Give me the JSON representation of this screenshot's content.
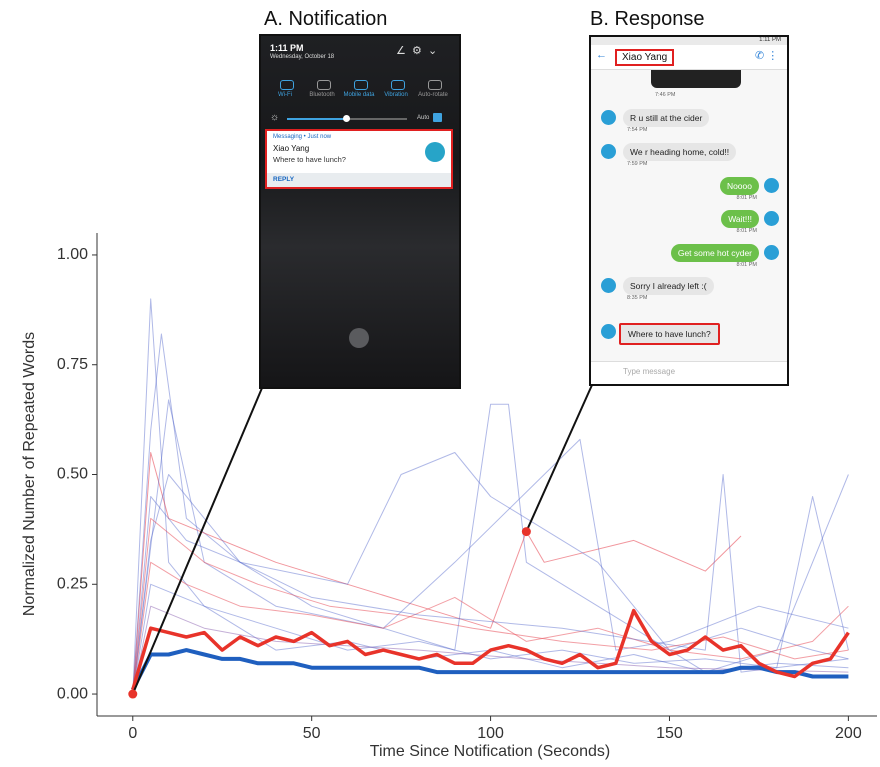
{
  "chart_data": {
    "type": "line",
    "xlabel": "Time Since Notification (Seconds)",
    "ylabel": "Normalized Number of Repeated Words",
    "xlim": [
      -10,
      208
    ],
    "ylim": [
      -0.05,
      1.05
    ],
    "xticks": [
      0,
      50,
      100,
      150,
      200
    ],
    "yticks": [
      {
        "value": 0,
        "label": "0.00"
      },
      {
        "value": 0.25,
        "label": "0.25"
      },
      {
        "value": 0.5,
        "label": "0.50"
      },
      {
        "value": 0.75,
        "label": "0.75"
      },
      {
        "value": 1,
        "label": "1.00"
      }
    ],
    "grid": false,
    "series": [
      {
        "color": "#4f63c9",
        "opacity": 0.45,
        "linewidth": 1,
        "x": [
          0,
          5,
          10,
          20,
          30,
          40,
          60,
          80,
          100,
          120,
          140,
          160,
          180,
          200
        ],
        "values": [
          0,
          0.9,
          0.3,
          0.2,
          0.15,
          0.1,
          0.12,
          0.08,
          0.1,
          0.06,
          0.09,
          0.05,
          0.07,
          0.06
        ]
      },
      {
        "color": "#4f63c9",
        "opacity": 0.45,
        "linewidth": 1,
        "x": [
          0,
          5,
          8,
          15,
          30,
          50,
          70,
          90,
          100,
          105,
          110,
          130,
          150,
          170,
          190,
          200
        ],
        "values": [
          0,
          0.6,
          0.82,
          0.4,
          0.3,
          0.2,
          0.15,
          0.1,
          0.66,
          0.66,
          0.3,
          0.2,
          0.1,
          0.15,
          0.1,
          0.08
        ]
      },
      {
        "color": "#e8505b",
        "opacity": 0.6,
        "linewidth": 1,
        "x": [
          0,
          5,
          10,
          25,
          40,
          60,
          80,
          100,
          110,
          115,
          140,
          160,
          170
        ],
        "values": [
          0,
          0.55,
          0.4,
          0.35,
          0.3,
          0.25,
          0.2,
          0.15,
          0.37,
          0.3,
          0.35,
          0.28,
          0.36
        ]
      },
      {
        "color": "#4f63c9",
        "opacity": 0.45,
        "linewidth": 1,
        "x": [
          0,
          5,
          15,
          30,
          60,
          75,
          90,
          100,
          130,
          140,
          150,
          160,
          180,
          200
        ],
        "values": [
          0,
          0.45,
          0.35,
          0.3,
          0.25,
          0.5,
          0.55,
          0.45,
          0.3,
          0.2,
          0.1,
          0.05,
          0.1,
          0.5
        ]
      },
      {
        "color": "#4f63c9",
        "opacity": 0.45,
        "linewidth": 1,
        "x": [
          0,
          10,
          20,
          40,
          70,
          90,
          125,
          135,
          150,
          175,
          200
        ],
        "values": [
          0,
          0.67,
          0.3,
          0.2,
          0.15,
          0.3,
          0.58,
          0.1,
          0.12,
          0.2,
          0.15
        ]
      },
      {
        "color": "#e8505b",
        "opacity": 0.55,
        "linewidth": 1,
        "x": [
          0,
          5,
          15,
          30,
          50,
          70,
          90,
          110,
          130,
          150,
          170,
          190,
          200
        ],
        "values": [
          0,
          0.3,
          0.25,
          0.2,
          0.18,
          0.15,
          0.22,
          0.12,
          0.15,
          0.1,
          0.08,
          0.12,
          0.2
        ]
      },
      {
        "color": "#4f63c9",
        "opacity": 0.45,
        "linewidth": 1,
        "x": [
          0,
          5,
          20,
          40,
          60,
          80,
          100,
          120,
          140,
          160,
          180,
          190,
          200
        ],
        "values": [
          0,
          0.25,
          0.2,
          0.15,
          0.1,
          0.12,
          0.08,
          0.1,
          0.07,
          0.08,
          0.06,
          0.45,
          0.1
        ]
      },
      {
        "color": "#4f63c9",
        "opacity": 0.45,
        "linewidth": 1,
        "x": [
          0,
          5,
          10,
          30,
          50,
          80,
          120,
          160,
          165,
          170,
          200
        ],
        "values": [
          0,
          0.35,
          0.5,
          0.3,
          0.22,
          0.18,
          0.15,
          0.1,
          0.5,
          0.05,
          0.08
        ]
      },
      {
        "color": "#8a5fb0",
        "opacity": 0.5,
        "linewidth": 1,
        "x": [
          0,
          5,
          20,
          40,
          80,
          110,
          150,
          200
        ],
        "values": [
          0,
          0.2,
          0.15,
          0.12,
          0.1,
          0.08,
          0.06,
          0.05
        ]
      },
      {
        "color": "#e8505b",
        "opacity": 0.55,
        "linewidth": 1,
        "x": [
          0,
          5,
          20,
          35,
          55,
          75,
          95,
          120,
          145,
          165,
          185,
          200
        ],
        "values": [
          0,
          0.4,
          0.3,
          0.25,
          0.2,
          0.18,
          0.15,
          0.12,
          0.1,
          0.13,
          0.08,
          0.1
        ]
      },
      {
        "color": "#1f5fbf",
        "opacity": 1,
        "linewidth": 4,
        "x": [
          0,
          5,
          10,
          15,
          20,
          25,
          30,
          35,
          40,
          45,
          50,
          55,
          60,
          65,
          70,
          75,
          80,
          85,
          90,
          95,
          100,
          105,
          110,
          115,
          120,
          125,
          130,
          135,
          140,
          145,
          150,
          155,
          160,
          165,
          170,
          175,
          180,
          185,
          190,
          195,
          200
        ],
        "values": [
          0.01,
          0.09,
          0.09,
          0.1,
          0.09,
          0.08,
          0.08,
          0.07,
          0.07,
          0.07,
          0.06,
          0.06,
          0.06,
          0.06,
          0.06,
          0.06,
          0.06,
          0.05,
          0.05,
          0.05,
          0.05,
          0.05,
          0.05,
          0.05,
          0.05,
          0.05,
          0.05,
          0.05,
          0.05,
          0.05,
          0.05,
          0.05,
          0.05,
          0.05,
          0.06,
          0.06,
          0.05,
          0.05,
          0.04,
          0.04,
          0.04
        ]
      },
      {
        "color": "#e8332a",
        "opacity": 1,
        "linewidth": 3.5,
        "x": [
          0,
          5,
          10,
          15,
          20,
          25,
          30,
          35,
          40,
          45,
          50,
          55,
          60,
          65,
          70,
          75,
          80,
          85,
          90,
          95,
          100,
          105,
          110,
          115,
          120,
          125,
          130,
          135,
          140,
          145,
          150,
          155,
          160,
          165,
          170,
          175,
          180,
          185,
          190,
          195,
          200
        ],
        "values": [
          0.01,
          0.15,
          0.14,
          0.13,
          0.14,
          0.1,
          0.13,
          0.11,
          0.13,
          0.12,
          0.14,
          0.11,
          0.12,
          0.09,
          0.1,
          0.09,
          0.08,
          0.09,
          0.07,
          0.07,
          0.1,
          0.11,
          0.1,
          0.08,
          0.07,
          0.09,
          0.06,
          0.07,
          0.19,
          0.12,
          0.09,
          0.1,
          0.13,
          0.1,
          0.11,
          0.07,
          0.05,
          0.04,
          0.07,
          0.08,
          0.14
        ]
      }
    ],
    "points": [
      {
        "x": 0,
        "y": 0,
        "color": "#e8332a"
      },
      {
        "x": 110,
        "y": 0.37,
        "color": "#e8332a"
      }
    ]
  },
  "notification": {
    "title": "A. Notification",
    "time": "1:11 PM",
    "date": "Wednesday, October 18",
    "toggles": [
      "Wi-Fi",
      "Bluetooth",
      "Mobile data",
      "Vibration",
      "Auto-rotate"
    ],
    "auto": "Auto",
    "app": "Messaging • Just now",
    "sender": "Xiao Yang",
    "message": "Where to have lunch?",
    "action": "REPLY"
  },
  "response": {
    "title": "B. Response",
    "status_time": "1:11 PM",
    "contact": "Xiao Yang",
    "first_time": "7:46 PM",
    "messages": [
      {
        "text": "R u still at the cider",
        "time": "7:54 PM",
        "side": "in"
      },
      {
        "text": "We r heading home, cold!!",
        "time": "7:59 PM",
        "side": "in"
      },
      {
        "text": "Noooo",
        "time": "8:01 PM",
        "side": "out"
      },
      {
        "text": "Wait!!!",
        "time": "8:01 PM",
        "side": "out"
      },
      {
        "text": "Get some hot cyder",
        "time": "8:01 PM",
        "side": "out"
      },
      {
        "text": "Sorry I already left :(",
        "time": "8:35 PM",
        "side": "in"
      },
      {
        "text": "Where to have lunch?",
        "time": null,
        "side": "in"
      }
    ],
    "input": "Type message"
  }
}
